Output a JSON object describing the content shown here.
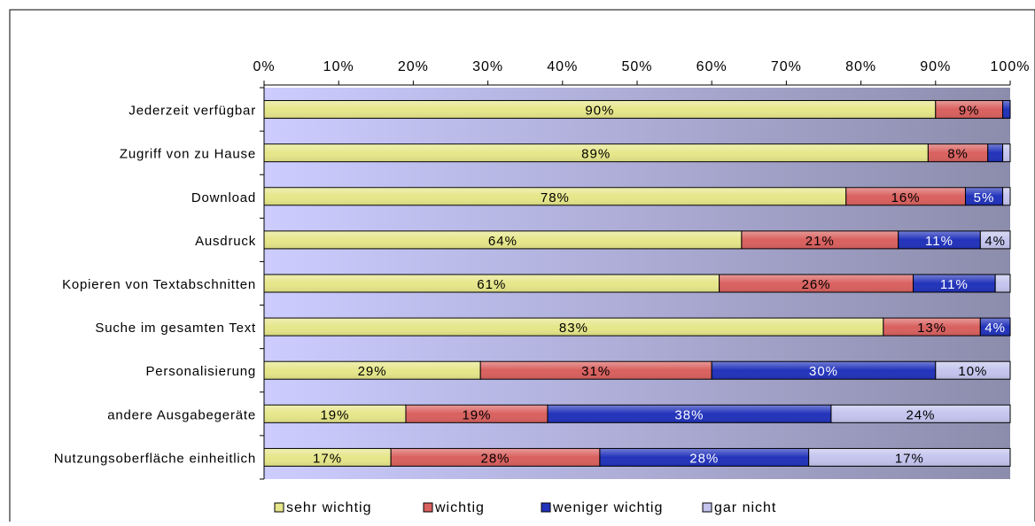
{
  "chart_data": {
    "type": "bar",
    "orientation": "horizontal",
    "stacked": true,
    "percent_stacked": true,
    "xlim": [
      0,
      100
    ],
    "x_ticks": [
      "0%",
      "10%",
      "20%",
      "30%",
      "40%",
      "50%",
      "60%",
      "70%",
      "80%",
      "90%",
      "100%"
    ],
    "x_axis_position": "top",
    "grid": false,
    "legend_position": "bottom",
    "categories": [
      "Jederzeit verfügbar",
      "Zugriff von zu Hause",
      "Download",
      "Ausdruck",
      "Kopieren von Textabschnitten",
      "Suche im gesamten Text",
      "Personalisierung",
      "andere Ausgabegeräte",
      "Nutzungsoberfläche einheitlich"
    ],
    "series": [
      {
        "name": "sehr wichtig",
        "color": "#e6e68a",
        "values": [
          90,
          89,
          78,
          64,
          61,
          83,
          29,
          19,
          17
        ],
        "labels": [
          "90%",
          "89%",
          "78%",
          "64%",
          "61%",
          "83%",
          "29%",
          "19%",
          "17%"
        ]
      },
      {
        "name": "wichtig",
        "color": "#d9615f",
        "values": [
          9,
          8,
          16,
          21,
          26,
          13,
          31,
          19,
          28
        ],
        "labels": [
          "9%",
          "8%",
          "16%",
          "21%",
          "26%",
          "13%",
          "31%",
          "19%",
          "28%"
        ]
      },
      {
        "name": "weniger wichtig",
        "color": "#2233bb",
        "values": [
          1,
          2,
          5,
          11,
          11,
          4,
          30,
          38,
          28
        ],
        "labels": [
          "",
          "",
          "5%",
          "11%",
          "11%",
          "4%",
          "30%",
          "38%",
          "28%"
        ]
      },
      {
        "name": "gar nicht",
        "color": "#c4c4ee",
        "values": [
          1,
          1,
          1,
          4,
          2,
          1,
          10,
          24,
          17
        ],
        "labels": [
          "",
          "",
          "",
          "4%",
          "",
          "",
          "10%",
          "24%",
          "17%"
        ]
      }
    ],
    "plot_background": {
      "from": "#ccccff",
      "to": "#8c8cac"
    }
  }
}
